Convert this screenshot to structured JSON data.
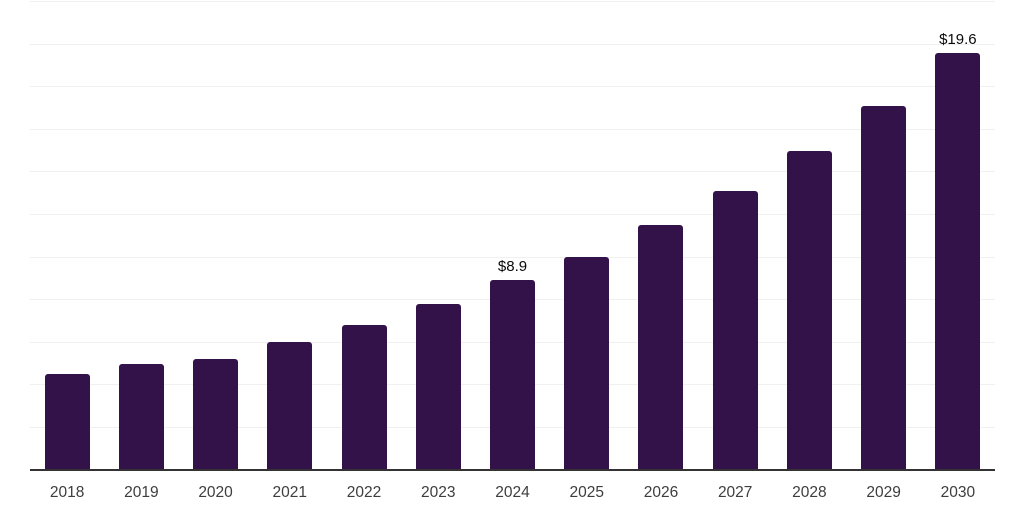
{
  "chart_data": {
    "type": "bar",
    "title": "",
    "xlabel": "",
    "ylabel": "",
    "categories": [
      "2018",
      "2019",
      "2020",
      "2021",
      "2022",
      "2023",
      "2024",
      "2025",
      "2026",
      "2027",
      "2028",
      "2029",
      "2030"
    ],
    "values": [
      4.5,
      5.0,
      5.2,
      6.0,
      6.8,
      7.8,
      8.9,
      10.0,
      11.5,
      13.1,
      15.0,
      17.1,
      19.6
    ],
    "value_labels": [
      "",
      "",
      "",
      "",
      "",
      "",
      "$8.9",
      "",
      "",
      "",
      "",
      "",
      "$19.6"
    ],
    "ylim": [
      0,
      22
    ],
    "grid": true,
    "grid_step": 2,
    "legend_position": "none",
    "colors": {
      "bar": "#331249",
      "axis_line": "#333333",
      "gridline": "#f0f0f0",
      "tick_label": "#3d3d3d",
      "data_label": "#0a0a0a",
      "background": "#ffffff"
    }
  }
}
